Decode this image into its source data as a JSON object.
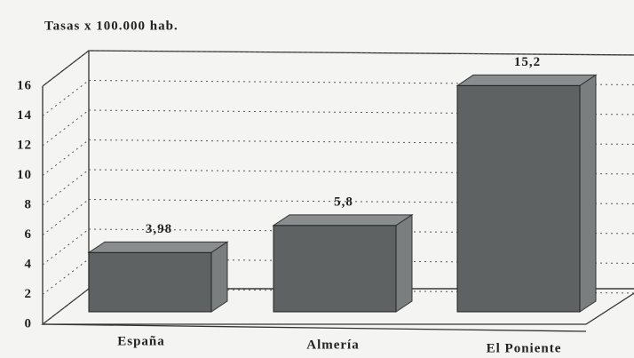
{
  "chart_data": {
    "type": "bar",
    "title": "Tasas x 100.000 hab.",
    "categories": [
      "España",
      "Almería",
      "El Poniente"
    ],
    "values": [
      3.98,
      5.8,
      15.2
    ],
    "value_labels": [
      "3,98",
      "5,8",
      "15,2"
    ],
    "color": "#5f6263",
    "ylim": [
      0,
      16
    ],
    "yticks": [
      0,
      2,
      4,
      6,
      8,
      10,
      12,
      14,
      16
    ],
    "grid": true
  }
}
